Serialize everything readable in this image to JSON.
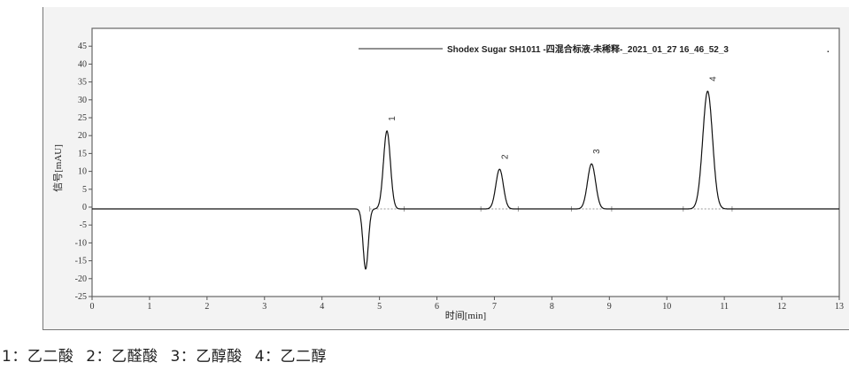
{
  "chart_data": {
    "type": "line",
    "title": "",
    "legend": {
      "label": "Shodex Sugar SH1011 -四混合标液-未稀释-_2021_01_27 16_46_52_3",
      "marker": ".",
      "placement": "top-right"
    },
    "xlabel": "时间[min]",
    "ylabel": "信号[mAU]",
    "xlim": [
      0,
      13
    ],
    "ylim": [
      -25,
      50
    ],
    "xticks": [
      0,
      1,
      2,
      3,
      4,
      5,
      6,
      7,
      8,
      9,
      10,
      11,
      12,
      13
    ],
    "yticks": [
      -25,
      -20,
      -15,
      -10,
      -5,
      0,
      5,
      10,
      15,
      20,
      25,
      30,
      35,
      40,
      45
    ],
    "grid": false,
    "baseline": -0.5,
    "negative_peak": {
      "rt": 4.76,
      "height": -16.8,
      "width_min": 0.045
    },
    "peaks": [
      {
        "label": "1",
        "rt": 5.13,
        "height": 21.8,
        "width_min": 0.06
      },
      {
        "label": "2",
        "rt": 7.09,
        "height": 11.1,
        "width_min": 0.065
      },
      {
        "label": "3",
        "rt": 8.69,
        "height": 12.6,
        "width_min": 0.07
      },
      {
        "label": "4",
        "rt": 10.71,
        "height": 32.9,
        "width_min": 0.085
      }
    ],
    "line_color": "#111111"
  },
  "caption": [
    "1：乙二酸",
    "2：乙醛酸",
    "3：乙醇酸",
    "4：乙二醇"
  ]
}
